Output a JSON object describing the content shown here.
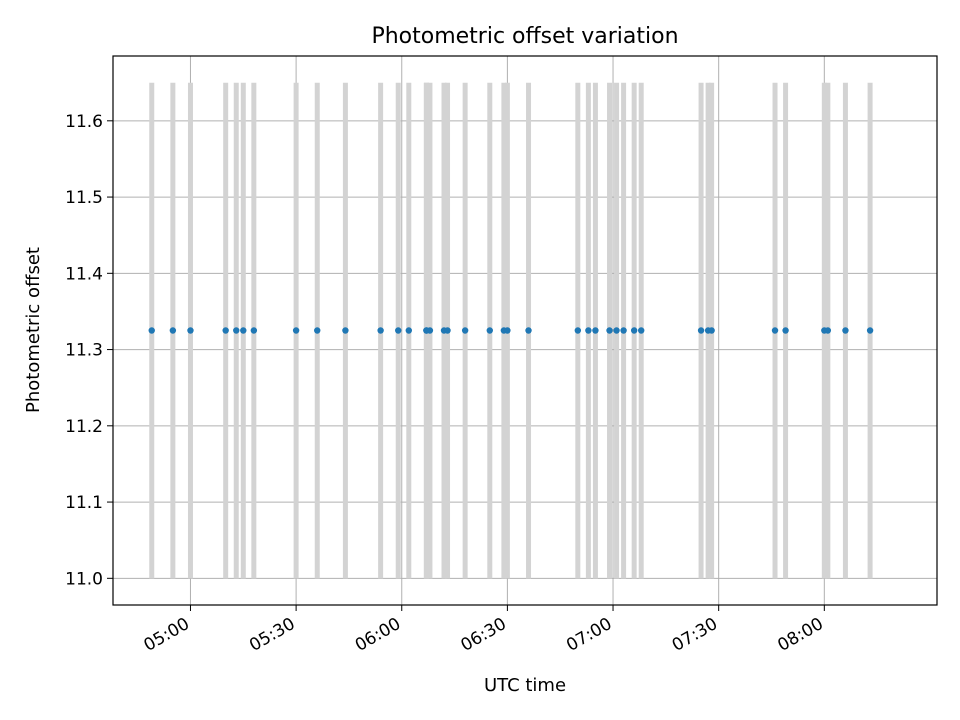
{
  "chart_data": {
    "type": "scatter",
    "title": "Photometric offset variation",
    "xlabel": "UTC time",
    "ylabel": "Photometric offset",
    "xlim": [
      "04:38",
      "08:32"
    ],
    "ylim": [
      10.965,
      11.685
    ],
    "x_ticks": [
      "05:00",
      "05:30",
      "06:00",
      "06:30",
      "07:00",
      "07:30",
      "08:00"
    ],
    "y_ticks": [
      11.0,
      11.1,
      11.2,
      11.3,
      11.4,
      11.5,
      11.6
    ],
    "grid": true,
    "point_color": "#1f77b4",
    "bar_color": "#d3d3d3",
    "bar_range": [
      11.0,
      11.65
    ],
    "series": [
      {
        "y": 11.325,
        "times": [
          "04:49",
          "04:55",
          "05:00",
          "05:10",
          "05:13",
          "05:15",
          "05:18",
          "05:30",
          "05:36",
          "05:44",
          "05:54",
          "05:59",
          "06:02",
          "06:07",
          "06:07",
          "06:08",
          "06:12",
          "06:13",
          "06:18",
          "06:25",
          "06:29",
          "06:30",
          "06:36",
          "06:50",
          "06:53",
          "06:55",
          "06:59",
          "07:01",
          "07:03",
          "07:06",
          "07:08",
          "07:25",
          "07:27",
          "07:28",
          "07:46",
          "07:49",
          "08:00",
          "08:01",
          "08:06",
          "08:13"
        ]
      }
    ]
  }
}
